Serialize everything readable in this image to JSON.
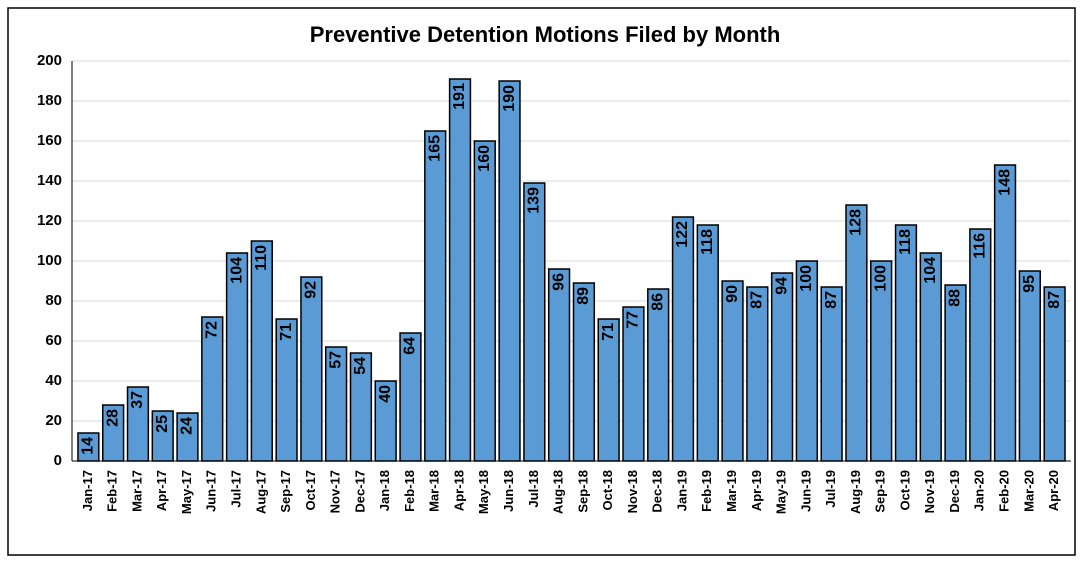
{
  "chart_data": {
    "type": "bar",
    "title": "Preventive Detention Motions Filed by Month",
    "categories": [
      "Jan-17",
      "Feb-17",
      "Mar-17",
      "Apr-17",
      "May-17",
      "Jun-17",
      "Jul-17",
      "Aug-17",
      "Sep-17",
      "Oct-17",
      "Nov-17",
      "Dec-17",
      "Jan-18",
      "Feb-18",
      "Mar-18",
      "Apr-18",
      "May-18",
      "Jun-18",
      "Jul-18",
      "Aug-18",
      "Sep-18",
      "Oct-18",
      "Nov-18",
      "Dec-18",
      "Jan-19",
      "Feb-19",
      "Mar-19",
      "Apr-19",
      "May-19",
      "Jun-19",
      "Jul-19",
      "Aug-19",
      "Sep-19",
      "Oct-19",
      "Nov-19",
      "Dec-19",
      "Jan-20",
      "Feb-20",
      "Mar-20",
      "Apr-20"
    ],
    "values": [
      14,
      28,
      37,
      25,
      24,
      72,
      104,
      110,
      71,
      92,
      57,
      54,
      40,
      64,
      165,
      191,
      160,
      190,
      139,
      96,
      89,
      71,
      77,
      86,
      122,
      118,
      90,
      87,
      94,
      100,
      87,
      128,
      100,
      118,
      104,
      88,
      116,
      148,
      95,
      87
    ],
    "color": "#5b9bd5",
    "ylim": [
      0,
      200
    ],
    "yticks": [
      0,
      20,
      40,
      60,
      80,
      100,
      120,
      140,
      160,
      180,
      200
    ],
    "grid": true
  }
}
